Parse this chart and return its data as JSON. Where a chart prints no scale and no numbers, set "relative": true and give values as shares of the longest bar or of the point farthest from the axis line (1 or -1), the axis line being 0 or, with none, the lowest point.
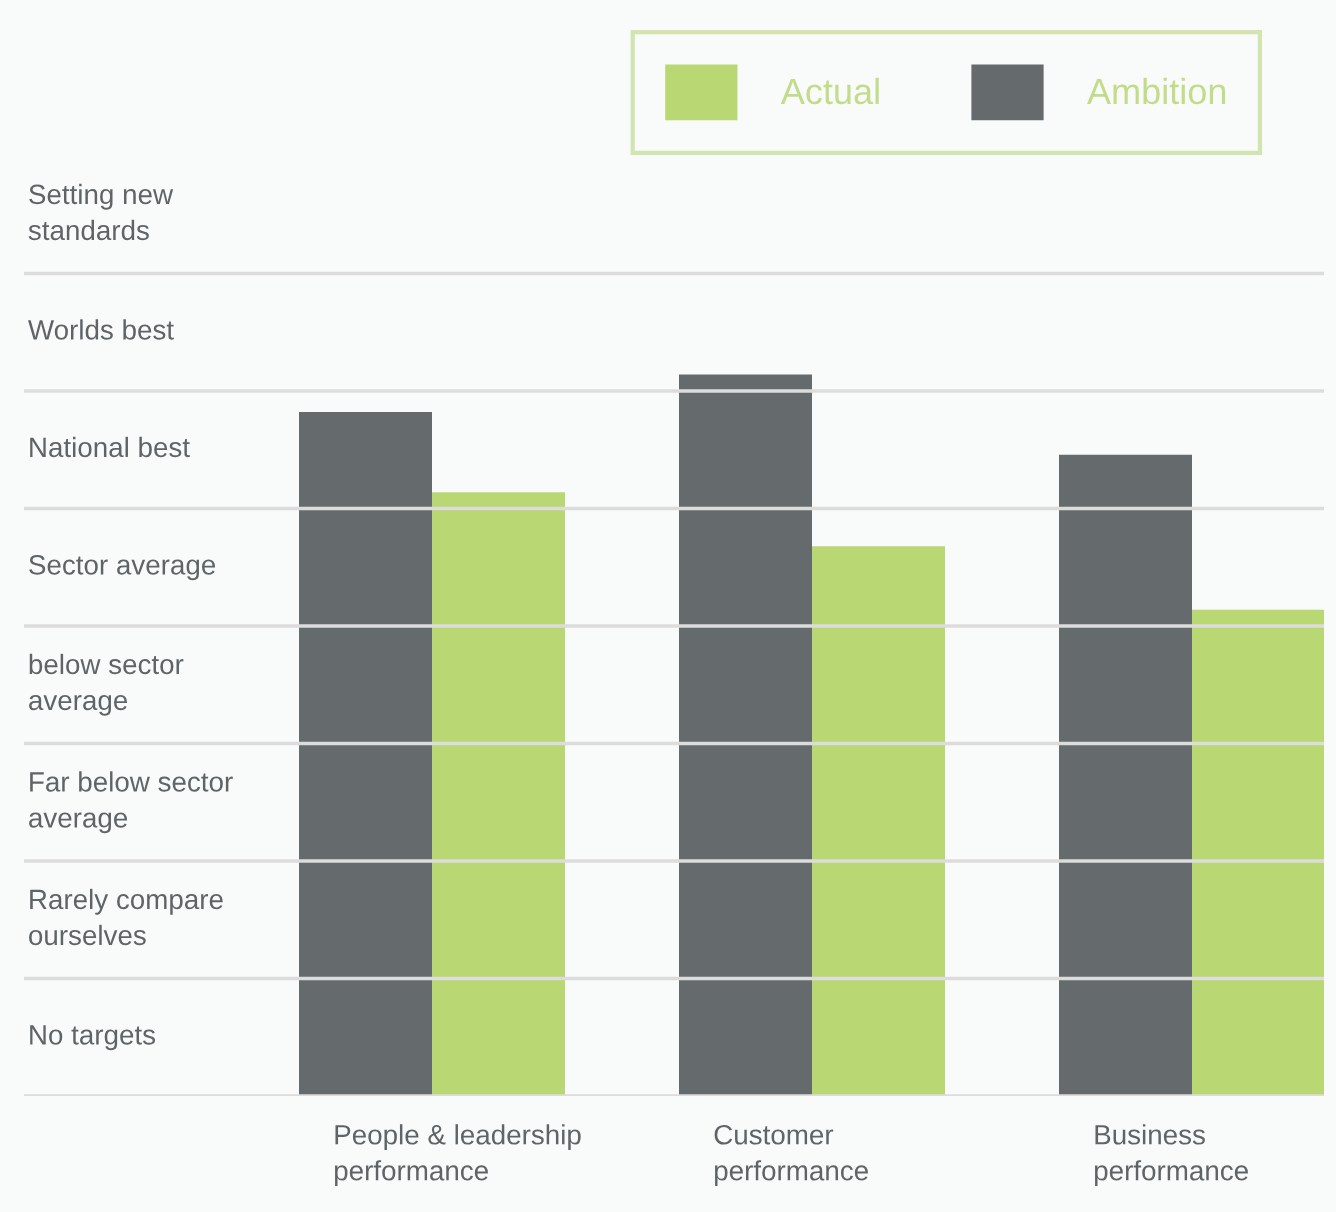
{
  "chart_data": {
    "type": "bar",
    "categories": [
      "People & leadership\nperformance",
      "Customer\nperformance",
      "Business\nperformance"
    ],
    "series": [
      {
        "name": "Actual",
        "color": "#b9d772",
        "values": [
          0.837,
          0.762,
          0.674
        ]
      },
      {
        "name": "Ambition",
        "color": "#656b6d",
        "values": [
          0.948,
          1,
          0.889
        ]
      }
    ],
    "relative": true,
    "annotations": [
      "No targets",
      "Rarely compare\nourselves",
      "Far below sector\naverage",
      "below sector\naverage",
      "Sector average",
      "National best",
      "Worlds best",
      "Setting new\nstandards"
    ],
    "grid": true,
    "legend": "top right"
  }
}
